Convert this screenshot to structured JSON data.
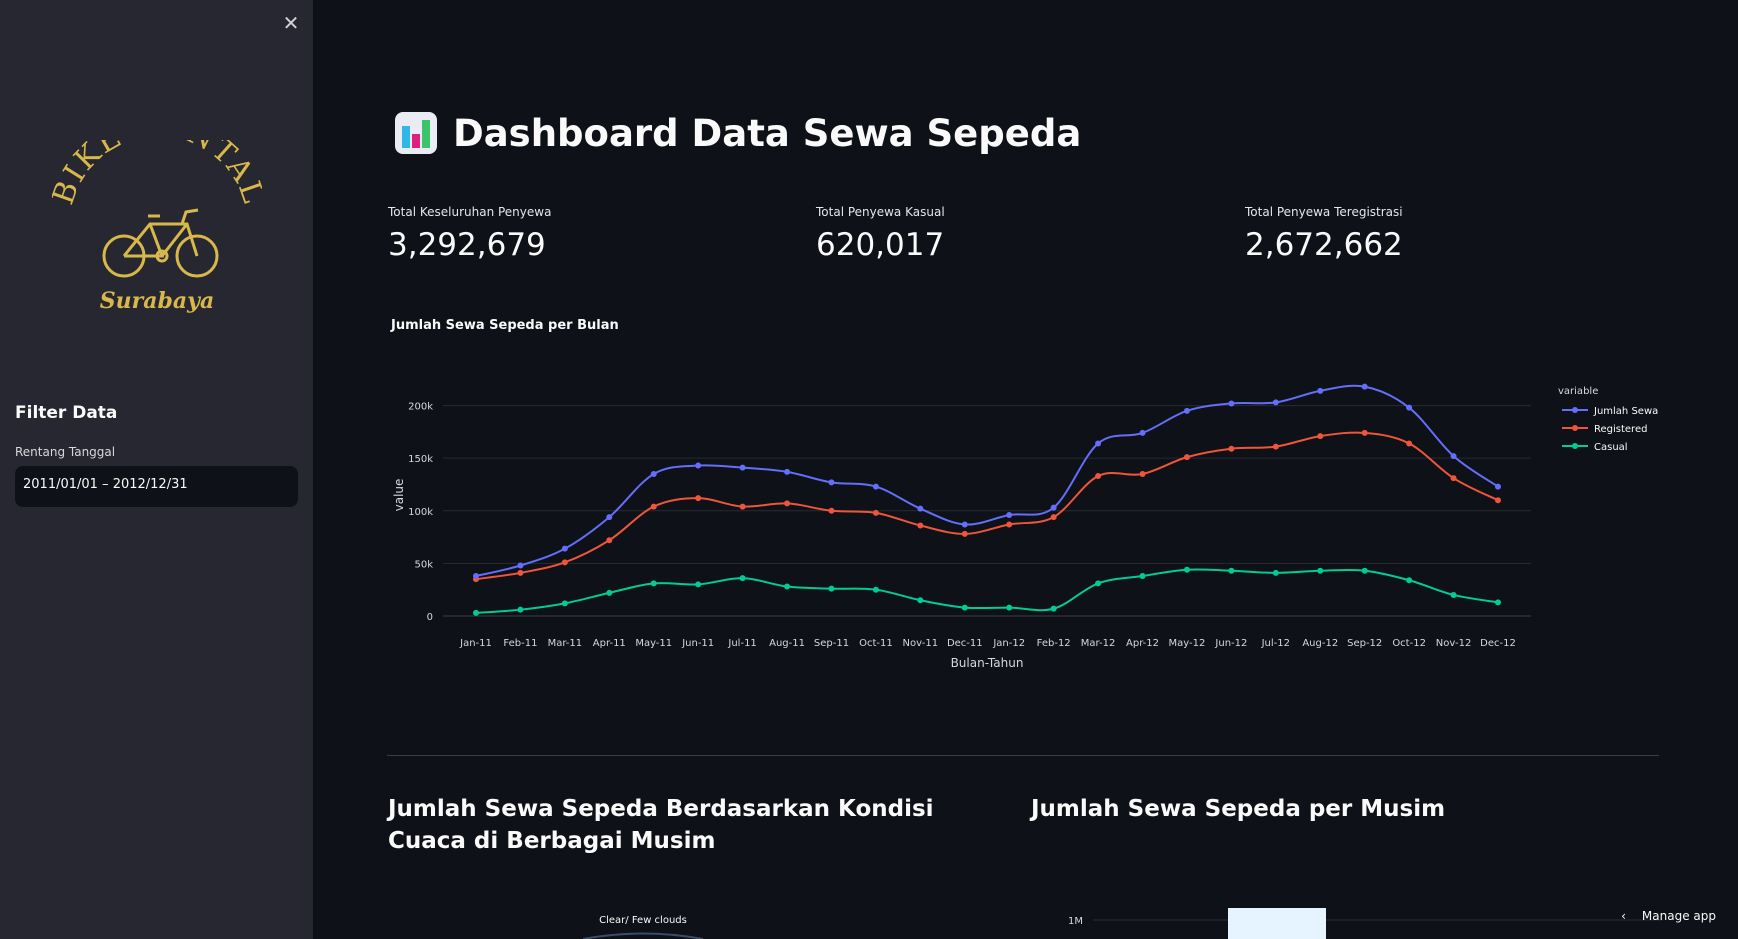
{
  "sidebar": {
    "close_icon": "close-icon",
    "logo": {
      "line1": "BIKE RENTAL",
      "line2": "Surabaya",
      "color": "#d8b84b"
    },
    "filter_title": "Filter Data",
    "date_range_label": "Rentang Tanggal",
    "date_range_value": "2011/01/01 – 2012/12/31"
  },
  "header": {
    "icon": "bar-chart-icon",
    "title": "Dashboard Data Sewa Sepeda"
  },
  "metrics": [
    {
      "label": "Total Keseluruhan Penyewa",
      "value": "3,292,679"
    },
    {
      "label": "Total Penyewa Kasual",
      "value": "620,017"
    },
    {
      "label": "Total Penyewa Teregistrasi",
      "value": "2,672,662"
    }
  ],
  "chart_data": {
    "type": "line",
    "title": "Jumlah Sewa Sepeda per Bulan",
    "xlabel": "Bulan-Tahun",
    "ylabel": "value",
    "ylim": [
      0,
      230000
    ],
    "yticks": [
      0,
      50000,
      100000,
      150000,
      200000
    ],
    "ytick_labels": [
      "0",
      "50k",
      "100k",
      "150k",
      "200k"
    ],
    "grid": true,
    "legend_title": "variable",
    "legend_position": "top-right",
    "categories": [
      "Jan-11",
      "Feb-11",
      "Mar-11",
      "Apr-11",
      "May-11",
      "Jun-11",
      "Jul-11",
      "Aug-11",
      "Sep-11",
      "Oct-11",
      "Nov-11",
      "Dec-11",
      "Jan-12",
      "Feb-12",
      "Mar-12",
      "Apr-12",
      "May-12",
      "Jun-12",
      "Jul-12",
      "Aug-12",
      "Sep-12",
      "Oct-12",
      "Nov-12",
      "Dec-12"
    ],
    "series": [
      {
        "name": "Jumlah Sewa",
        "color": "#636efa",
        "values": [
          38000,
          48000,
          64000,
          94000,
          135000,
          143000,
          141000,
          137000,
          127000,
          123000,
          102000,
          87000,
          96000,
          103000,
          164000,
          174000,
          195000,
          202000,
          203000,
          214000,
          218000,
          198000,
          152000,
          123000
        ]
      },
      {
        "name": "Registered",
        "color": "#ef553b",
        "values": [
          35000,
          41000,
          51000,
          72000,
          104000,
          112000,
          104000,
          107000,
          100000,
          98000,
          86000,
          78000,
          87000,
          94000,
          133000,
          135000,
          151000,
          159000,
          161000,
          171000,
          174000,
          164000,
          131000,
          110000
        ]
      },
      {
        "name": "Casual",
        "color": "#00cc96",
        "values": [
          3000,
          6000,
          12000,
          22000,
          31000,
          30000,
          36000,
          28000,
          26000,
          25000,
          15000,
          8000,
          8000,
          7000,
          31000,
          38000,
          44000,
          43000,
          41000,
          43000,
          43000,
          34000,
          20000,
          13000
        ]
      }
    ]
  },
  "sections": [
    {
      "title": "Jumlah Sewa Sepeda Berdasarkan Kondisi Cuaca di Berbagai Musim"
    },
    {
      "title": "Jumlah Sewa Sepeda per Musim"
    }
  ],
  "bottom": {
    "pie_label": "Clear/ Few clouds",
    "bar_ytick": "1M"
  },
  "manage_app": {
    "label": "Manage app",
    "icon": "chevron-left-icon"
  }
}
